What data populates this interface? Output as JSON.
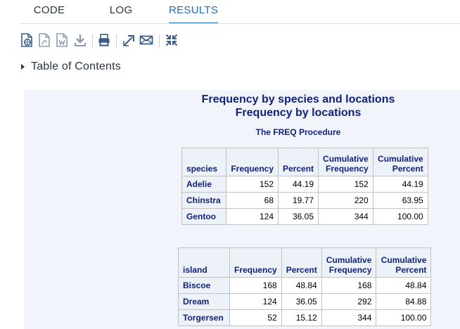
{
  "tabs": [
    {
      "label": "CODE",
      "active": false
    },
    {
      "label": "LOG",
      "active": false
    },
    {
      "label": "RESULTS",
      "active": true
    }
  ],
  "toolbar": {
    "icons": [
      "html-export-icon",
      "pdf-export-icon",
      "word-export-icon",
      "download-icon",
      "print-icon",
      "open-new-window-icon",
      "email-icon",
      "collapse-icon"
    ]
  },
  "toc": {
    "label": "Table of Contents"
  },
  "results": {
    "title1": "Frequency by species and locations",
    "title2": "Frequency by locations",
    "procedure": "The FREQ Procedure",
    "tables": [
      {
        "row_header": "species",
        "columns": [
          "Frequency",
          "Percent",
          "Cumulative Frequency",
          "Cumulative Percent"
        ],
        "rows": [
          {
            "label": "Adelie",
            "values": [
              "152",
              "44.19",
              "152",
              "44.19"
            ]
          },
          {
            "label": "Chinstra",
            "values": [
              "68",
              "19.77",
              "220",
              "63.95"
            ]
          },
          {
            "label": "Gentoo",
            "values": [
              "124",
              "36.05",
              "344",
              "100.00"
            ]
          }
        ]
      },
      {
        "row_header": "island",
        "columns": [
          "Frequency",
          "Percent",
          "Cumulative Frequency",
          "Cumulative Percent"
        ],
        "rows": [
          {
            "label": "Biscoe",
            "values": [
              "168",
              "48.84",
              "168",
              "48.84"
            ]
          },
          {
            "label": "Dream",
            "values": [
              "124",
              "36.05",
              "292",
              "84.88"
            ]
          },
          {
            "label": "Torgersen",
            "values": [
              "52",
              "15.12",
              "344",
              "100.00"
            ]
          }
        ]
      }
    ]
  },
  "colors": {
    "accent": "#1b6ec2",
    "title": "#112277",
    "panel_bg": "#f1f4fb",
    "header_bg": "#edf2f9"
  }
}
